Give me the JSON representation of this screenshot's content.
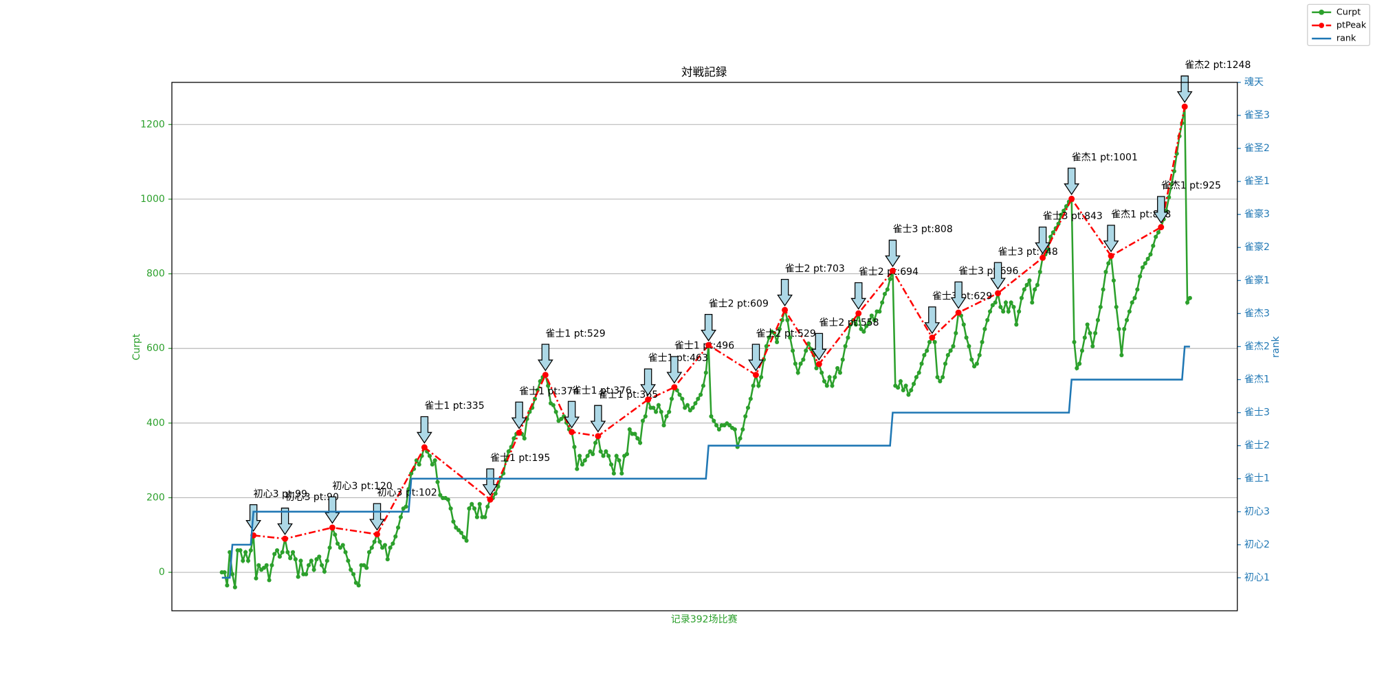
{
  "chart_data": {
    "type": "line",
    "title": "対戦記録",
    "xlabel": "记录392场比赛",
    "ylabel": "Curpt",
    "y2label": "rank",
    "xlim": [
      -19,
      386
    ],
    "ylim": [
      -103,
      1313
    ],
    "yticks": [
      0,
      200,
      400,
      600,
      800,
      1000,
      1200
    ],
    "y2lim": [
      0,
      16
    ],
    "y2ticks": [
      {
        "value": 1,
        "label": "初心1"
      },
      {
        "value": 2,
        "label": "初心2"
      },
      {
        "value": 3,
        "label": "初心3"
      },
      {
        "value": 4,
        "label": "雀士1"
      },
      {
        "value": 5,
        "label": "雀士2"
      },
      {
        "value": 6,
        "label": "雀士3"
      },
      {
        "value": 7,
        "label": "雀杰1"
      },
      {
        "value": 8,
        "label": "雀杰2"
      },
      {
        "value": 9,
        "label": "雀杰3"
      },
      {
        "value": 10,
        "label": "雀豪1"
      },
      {
        "value": 11,
        "label": "雀豪2"
      },
      {
        "value": 12,
        "label": "雀豪3"
      },
      {
        "value": 13,
        "label": "雀圣1"
      },
      {
        "value": 14,
        "label": "雀圣2"
      },
      {
        "value": 15,
        "label": "雀圣3"
      },
      {
        "value": 16,
        "label": "魂天"
      }
    ],
    "grid": true,
    "legend_loc": "upper right",
    "series": [
      {
        "name": "Curpt",
        "color": "#2ca02c",
        "style": "solid",
        "values": [
          0,
          0,
          -35,
          54,
          -5,
          -40,
          59,
          59,
          31,
          54,
          31,
          59,
          99,
          -16,
          19,
          7,
          12,
          19,
          -21,
          19,
          49,
          59,
          42,
          54,
          90,
          54,
          38,
          54,
          35,
          -12,
          31,
          -5,
          -5,
          19,
          31,
          7,
          35,
          42,
          19,
          2,
          31,
          66,
          120,
          101,
          77,
          66,
          73,
          54,
          31,
          7,
          -5,
          -28,
          -35,
          19,
          19,
          12,
          54,
          66,
          82,
          102,
          82,
          66,
          73,
          35,
          66,
          77,
          96,
          120,
          148,
          171,
          176,
          223,
          265,
          277,
          300,
          289,
          312,
          335,
          324,
          312,
          289,
          300,
          242,
          207,
          199,
          199,
          195,
          171,
          136,
          120,
          113,
          106,
          94,
          85,
          171,
          183,
          171,
          148,
          183,
          148,
          148,
          176,
          195,
          199,
          211,
          230,
          253,
          265,
          300,
          324,
          336,
          359,
          371,
          374,
          371,
          359,
          411,
          430,
          441,
          465,
          488,
          512,
          523,
          529,
          500,
          453,
          448,
          430,
          406,
          411,
          418,
          401,
          383,
          376,
          336,
          277,
          312,
          289,
          300,
          312,
          324,
          317,
          347,
          365,
          324,
          312,
          324,
          312,
          289,
          265,
          312,
          300,
          265,
          312,
          317,
          383,
          371,
          371,
          359,
          347,
          406,
          418,
          463,
          441,
          441,
          430,
          448,
          430,
          394,
          418,
          430,
          465,
          496,
          488,
          476,
          465,
          441,
          448,
          434,
          441,
          453,
          465,
          476,
          500,
          535,
          609,
          418,
          406,
          394,
          383,
          394,
          394,
          399,
          394,
          387,
          383,
          336,
          359,
          383,
          418,
          441,
          465,
          500,
          529,
          500,
          523,
          570,
          606,
          629,
          645,
          641,
          617,
          652,
          676,
          703,
          676,
          629,
          594,
          559,
          535,
          559,
          570,
          594,
          613,
          598,
          582,
          547,
          558,
          535,
          512,
          500,
          523,
          500,
          523,
          547,
          535,
          570,
          606,
          629,
          664,
          676,
          664,
          694,
          652,
          645,
          660,
          669,
          688,
          676,
          699,
          699,
          723,
          746,
          758,
          786,
          808,
          500,
          495,
          512,
          488,
          500,
          476,
          488,
          505,
          523,
          535,
          559,
          582,
          594,
          617,
          629,
          617,
          523,
          512,
          523,
          559,
          582,
          594,
          606,
          641,
          696,
          688,
          664,
          629,
          606,
          570,
          552,
          559,
          582,
          617,
          652,
          676,
          699,
          716,
          723,
          748,
          711,
          699,
          723,
          699,
          723,
          711,
          664,
          699,
          735,
          758,
          770,
          782,
          723,
          758,
          770,
          805,
          843,
          852,
          864,
          899,
          911,
          922,
          934,
          958,
          969,
          981,
          993,
          1001,
          617,
          547,
          559,
          594,
          629,
          664,
          641,
          606,
          641,
          676,
          711,
          758,
          805,
          828,
          848,
          782,
          711,
          652,
          582,
          652,
          676,
          699,
          723,
          735,
          758,
          793,
          817,
          828,
          840,
          852,
          875,
          899,
          911,
          925,
          946,
          969,
          1005,
          1040,
          1075,
          1122,
          1169,
          1204,
          1248,
          723,
          735
        ]
      },
      {
        "name": "ptPeak",
        "color": "#ff0000",
        "style": "dashdot",
        "x": [
          12,
          24,
          42,
          59,
          77,
          102,
          113,
          123,
          133,
          143,
          162,
          172,
          185,
          203,
          214,
          227,
          242,
          255,
          270,
          280,
          295,
          312,
          323,
          338,
          357,
          366
        ],
        "values": [
          99,
          90,
          120,
          102,
          335,
          195,
          374,
          529,
          376,
          365,
          463,
          496,
          609,
          529,
          703,
          558,
          694,
          808,
          629,
          696,
          748,
          843,
          1001,
          848,
          925,
          1248
        ],
        "value_labels": [
          "初心3 pt:99",
          "初心3 pt:90",
          "初心3 pt:120",
          "初心3 pt:102",
          "雀士1 pt:335",
          "雀士1 pt:195",
          "雀士1 pt:374",
          "雀士1 pt:529",
          "雀士1 pt:376",
          "雀士1 pt:365",
          "雀士1 pt:463",
          "雀士1 pt:496",
          "雀士2 pt:609",
          "雀士2 pt:529",
          "雀士2 pt:703",
          "雀士2 pt:558",
          "雀士2 pt:694",
          "雀士3 pt:808",
          "雀士3 pt:629",
          "雀士3 pt:696",
          "雀士3 pt:748",
          "雀士3 pt:843",
          "雀杰1 pt:1001",
          "雀杰1 pt:848",
          "雀杰1 pt:925",
          "雀杰2 pt:1248"
        ]
      },
      {
        "name": "rank",
        "color": "#1f77b4",
        "style": "solid",
        "axis": "y2",
        "x": [
          0,
          3,
          4,
          11,
          12,
          71,
          72,
          184,
          185,
          254,
          255,
          322,
          323,
          365,
          366,
          368
        ],
        "values": [
          1,
          1,
          2,
          2,
          3,
          3,
          4,
          4,
          5,
          5,
          6,
          6,
          7,
          7,
          8,
          8
        ]
      }
    ]
  }
}
